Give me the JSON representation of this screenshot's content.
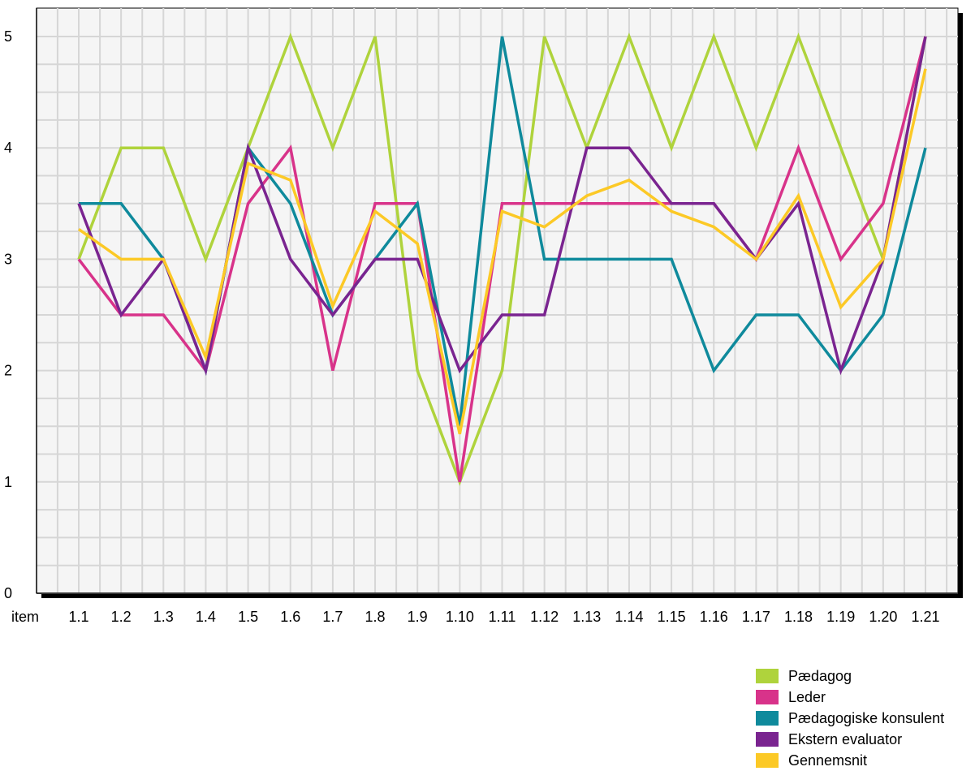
{
  "chart_data": {
    "type": "line",
    "title": "",
    "xlabel": "item",
    "ylabel": "",
    "ylim": [
      0,
      5
    ],
    "yticks": [
      "0",
      "1",
      "2",
      "3",
      "4",
      "5"
    ],
    "grid": true,
    "legend_position": "bottom-right",
    "categories": [
      "1.1",
      "1.2",
      "1.3",
      "1.4",
      "1.5",
      "1.6",
      "1.7",
      "1.8",
      "1.9",
      "1.10",
      "1.11",
      "1.12",
      "1.13",
      "1.14",
      "1.15",
      "1.16",
      "1.17",
      "1.18",
      "1.19",
      "1.20",
      "1.21"
    ],
    "series": [
      {
        "name": "Pædagog",
        "color": "#afd33c",
        "values": [
          3,
          4,
          4,
          3,
          4,
          5,
          4,
          5,
          2,
          1,
          2,
          5,
          4,
          5,
          4,
          5,
          4,
          5,
          4,
          3,
          5
        ]
      },
      {
        "name": "Leder",
        "color": "#d8338a",
        "values": [
          3,
          2.5,
          2.5,
          2,
          3.5,
          4,
          2,
          3.5,
          3.5,
          1,
          3.5,
          3.5,
          3.5,
          3.5,
          3.5,
          3.5,
          3,
          4,
          3,
          3.5,
          5
        ]
      },
      {
        "name": "Pædagogiske konsulent",
        "color": "#0f8a9c",
        "values": [
          3.5,
          3.5,
          3,
          2,
          4,
          3.5,
          2.5,
          3,
          3.5,
          1.5,
          5,
          3,
          3,
          3,
          3,
          2,
          2.5,
          2.5,
          2,
          2.5,
          4
        ]
      },
      {
        "name": "Ekstern evaluator",
        "color": "#7a2490",
        "values": [
          3.5,
          2.5,
          3,
          2,
          4,
          3,
          2.5,
          3,
          3,
          2,
          2.5,
          2.5,
          4,
          4,
          3.5,
          3.5,
          3,
          3.5,
          2,
          3,
          5
        ]
      },
      {
        "name": "Gennemsnit",
        "color": "#fcc926",
        "values": [
          3.27,
          3,
          3,
          2.12,
          3.86,
          3.71,
          2.58,
          3.43,
          3.14,
          1.43,
          3.43,
          3.29,
          3.57,
          3.71,
          3.43,
          3.29,
          3,
          3.57,
          2.57,
          3,
          4.71
        ]
      }
    ]
  }
}
